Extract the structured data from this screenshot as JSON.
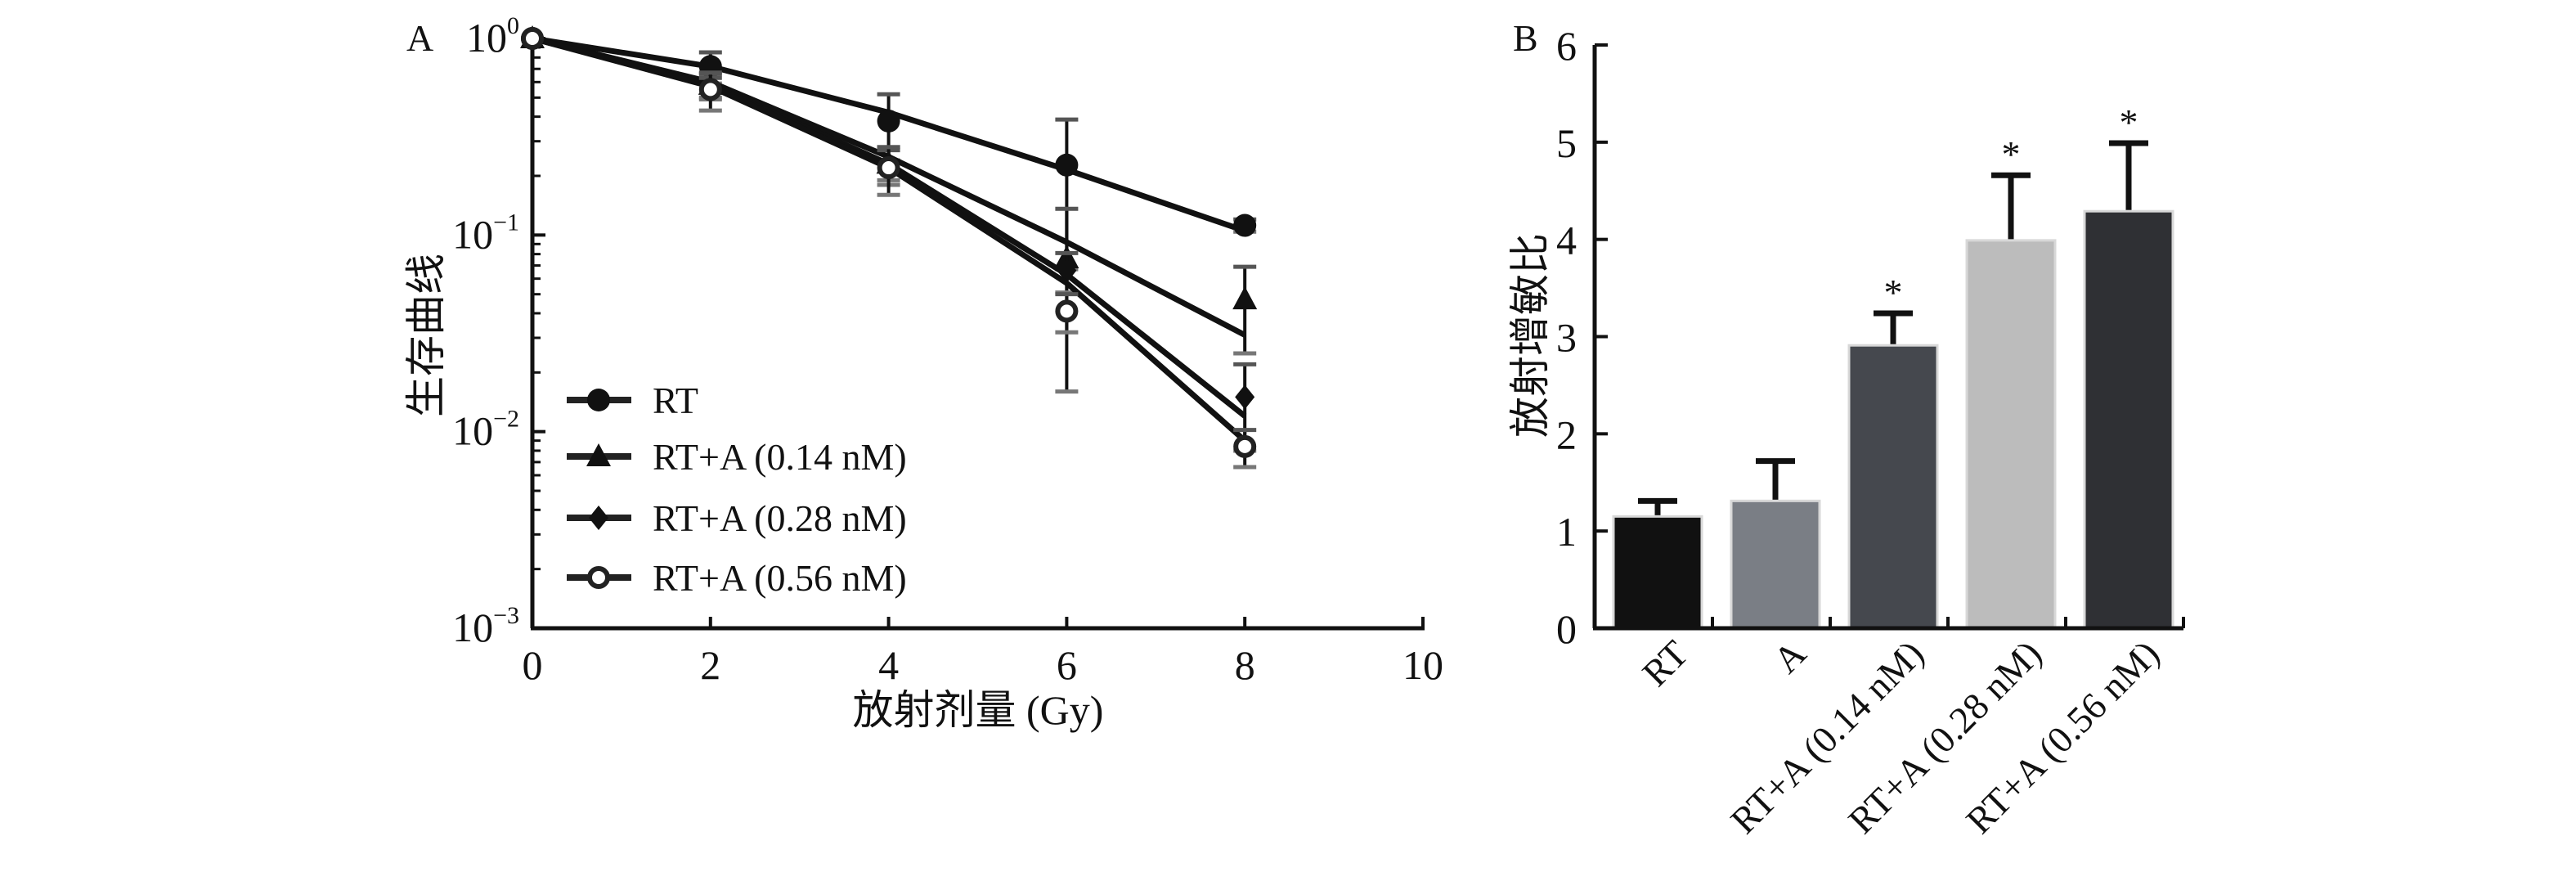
{
  "chart_data": [
    {
      "panel_label": "A",
      "type": "line",
      "yscale": "log",
      "xlabel": "放射剂量 (Gy)",
      "ylabel": "生存曲线",
      "xlim": [
        0,
        10
      ],
      "ylim": [
        0.001,
        1
      ],
      "xticks": [
        "0",
        "2",
        "4",
        "6",
        "8",
        "10"
      ],
      "yticks": [
        {
          "base": "10",
          "exp": "0",
          "value": 1
        },
        {
          "base": "10",
          "exp": "−1",
          "value": 0.1
        },
        {
          "base": "10",
          "exp": "−2",
          "value": 0.01
        },
        {
          "base": "10",
          "exp": "−3",
          "value": 0.001
        }
      ],
      "legend_position": "bottom-left",
      "x": [
        0,
        2,
        4,
        6,
        8
      ],
      "series": [
        {
          "name": "RT",
          "marker": "circle",
          "values": [
            1,
            0.72,
            0.38,
            0.227,
            0.112
          ],
          "err": [
            0,
            0.13,
            0.14,
            0.16,
            0.008
          ],
          "fit": [
            1,
            0.72,
            0.42,
            0.215,
            0.105
          ]
        },
        {
          "name": "RT+A (0.14 nM)",
          "marker": "triangle",
          "values": [
            1,
            0.58,
            0.23,
            0.076,
            0.047
          ],
          "err": [
            0,
            0.08,
            0.05,
            0.06,
            0.022
          ],
          "fit": [
            1,
            0.6,
            0.25,
            0.092,
            0.031
          ]
        },
        {
          "name": "RT+A (0.28 nM)",
          "marker": "diamond",
          "values": [
            1,
            0.56,
            0.23,
            0.066,
            0.015
          ],
          "err": [
            0,
            0.07,
            0.04,
            0.015,
            0.007
          ],
          "fit": [
            1,
            0.58,
            0.23,
            0.063,
            0.012
          ]
        },
        {
          "name": "RT+A (0.56 nM)",
          "marker": "open-circle",
          "values": [
            1,
            0.55,
            0.22,
            0.041,
            0.0084
          ],
          "err": [
            0,
            0.12,
            0.06,
            0.009,
            0.0018
          ],
          "fit": [
            1,
            0.57,
            0.22,
            0.057,
            0.009
          ]
        }
      ]
    },
    {
      "panel_label": "B",
      "type": "bar",
      "ylabel": "放射增敏比",
      "ylim": [
        0,
        6
      ],
      "yticks": [
        "0",
        "1",
        "2",
        "3",
        "4",
        "5",
        "6"
      ],
      "categories": [
        "RT",
        "A",
        "RT+A (0.14 nM)",
        "RT+A (0.28 nM)",
        "RT+A (0.56 nM)"
      ],
      "values": [
        1.15,
        1.31,
        2.91,
        3.99,
        4.29
      ],
      "err": [
        0.16,
        0.41,
        0.33,
        0.67,
        0.7
      ],
      "significance": [
        "",
        "",
        "*",
        "*",
        "*"
      ],
      "colors": [
        "#111111",
        "#7a7e85",
        "#45484e",
        "#bcbcbc",
        "#2f3034"
      ]
    }
  ]
}
